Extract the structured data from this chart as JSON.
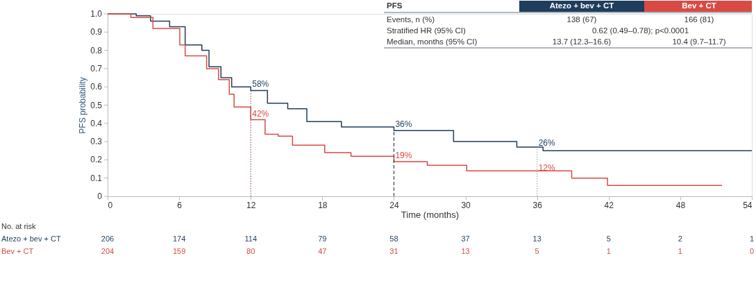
{
  "chart_data": {
    "type": "step",
    "ylabel": "PFS probability",
    "xlabel": "Time (months)",
    "xlim": [
      0,
      54
    ],
    "xticks": [
      0,
      6,
      12,
      18,
      24,
      30,
      36,
      42,
      48,
      54
    ],
    "ylim": [
      0,
      1
    ],
    "yticks": [
      0,
      0.1,
      0.2,
      0.3,
      0.4,
      0.5,
      0.6,
      0.7,
      0.8,
      0.9,
      {
        "value": 1,
        "label": "1.0"
      }
    ],
    "grid": false,
    "marker": "none",
    "line_style": "solid",
    "series": [
      {
        "name": "Atezo + bev + CT",
        "color": "#1f3d5c",
        "x": [
          0,
          2.4,
          3.6,
          5.2,
          6.5,
          7.9,
          8.5,
          9.5,
          10.4,
          12,
          13.4,
          15.1,
          16.7,
          19.6,
          24,
          29,
          34.3,
          36.5,
          54
        ],
        "values": [
          1.0,
          0.99,
          0.96,
          0.93,
          0.83,
          0.8,
          0.71,
          0.65,
          0.6,
          0.58,
          0.51,
          0.48,
          0.41,
          0.38,
          0.36,
          0.3,
          0.27,
          0.25,
          0.25
        ]
      },
      {
        "name": "Bev + CT",
        "color": "#d94a45",
        "x": [
          0,
          1.95,
          3.8,
          6.05,
          6.5,
          8.3,
          9.3,
          10.2,
          10.6,
          12,
          13.2,
          14.3,
          15.5,
          18.2,
          20.4,
          24,
          26.8,
          30.1,
          38.9,
          41.9,
          51.5
        ],
        "values": [
          1.0,
          0.98,
          0.92,
          0.83,
          0.77,
          0.7,
          0.64,
          0.56,
          0.49,
          0.42,
          0.34,
          0.33,
          0.28,
          0.24,
          0.22,
          0.19,
          0.17,
          0.14,
          0.1,
          0.06,
          0.06
        ]
      }
    ],
    "ref_lines": [
      {
        "axis": "x",
        "value": 12,
        "label": null,
        "color": "#8a3b3b",
        "line_style": "dotted"
      },
      {
        "axis": "x",
        "value": 24,
        "label": null,
        "color": "#222222",
        "line_style": "dashed"
      },
      {
        "axis": "x",
        "value": 36,
        "label": null,
        "color": "#999999",
        "line_style": "dotted"
      }
    ],
    "annotations": [
      {
        "text": "58%",
        "x": 12,
        "y": 0.58
      },
      {
        "text": "42%",
        "x": 12,
        "y": 0.42
      },
      {
        "text": "36%",
        "x": 24,
        "y": 0.36
      },
      {
        "text": "19%",
        "x": 24,
        "y": 0.19
      },
      {
        "text": "26%",
        "x": 36,
        "y": 0.26
      },
      {
        "text": "12%",
        "x": 36,
        "y": 0.12
      },
      "PFS",
      "Events, n (%)",
      "138 (67)",
      "166 (81)",
      "Stratified HR (95% CI)",
      "0.62 (0.49–0.78); p<0.0001",
      "Median, months (95% CI)",
      "13.7 (12.3–16.6)",
      "10.4 (9.7–11.7)",
      "No. at risk",
      "206",
      "174",
      "114",
      "79",
      "58",
      "37",
      "13",
      "5",
      "2",
      "1",
      "204",
      "159",
      "80",
      "47",
      "31",
      "13",
      "5",
      "1",
      "1",
      "0"
    ]
  }
}
